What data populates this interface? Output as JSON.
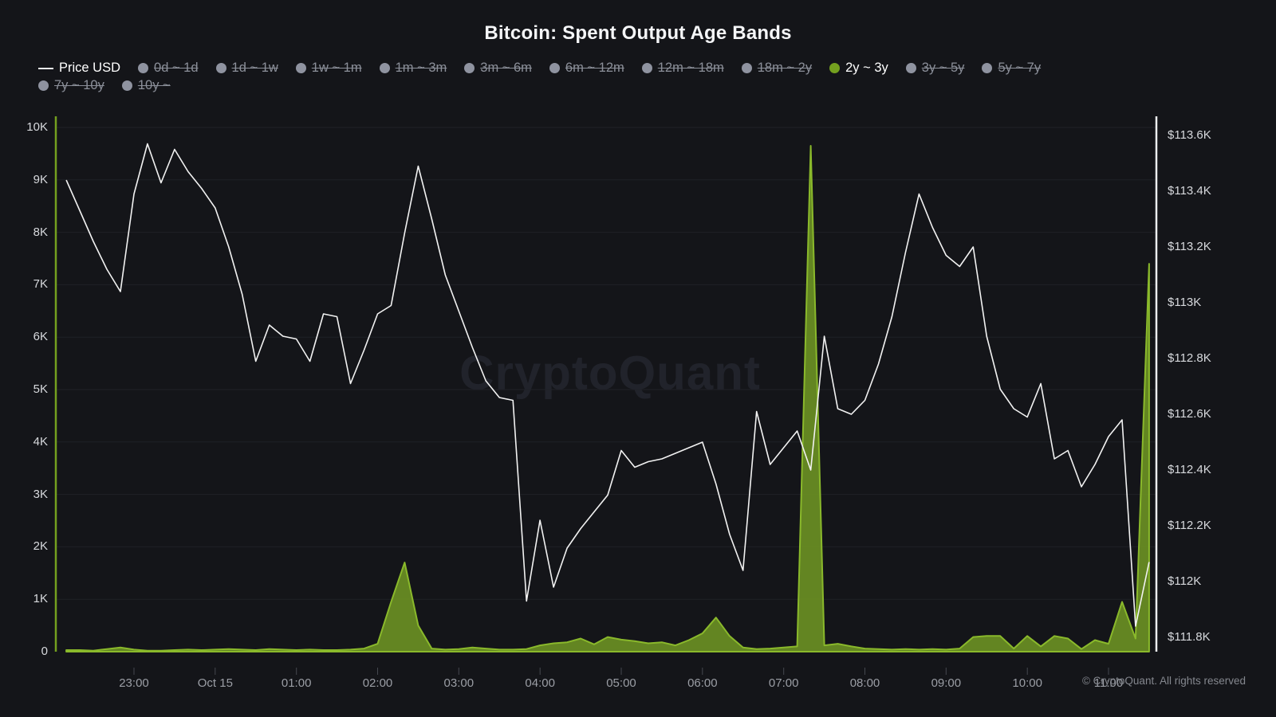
{
  "title": "Bitcoin: Spent Output Age Bands",
  "watermark": "CryptoQuant",
  "footer": "© CryptoQuant. All rights reserved",
  "colors": {
    "background": "#141519",
    "accent_green": "#74a01f",
    "area_fill": "#6a8f23",
    "area_stroke": "#8ab92b",
    "price_line": "#f2f2f2",
    "grid": "#1f2127",
    "tick_mark": "#45484f",
    "legend_inactive": "#8b8f99"
  },
  "legend": {
    "rows": [
      [
        {
          "label": "Price USD",
          "type": "price",
          "state": "on"
        },
        {
          "label": "0d ~ 1d",
          "type": "band",
          "state": "off"
        },
        {
          "label": "1d ~ 1w",
          "type": "band",
          "state": "off"
        },
        {
          "label": "1w ~ 1m",
          "type": "band",
          "state": "off"
        },
        {
          "label": "1m ~ 3m",
          "type": "band",
          "state": "off"
        },
        {
          "label": "3m ~ 6m",
          "type": "band",
          "state": "off"
        },
        {
          "label": "6m ~ 12m",
          "type": "band",
          "state": "off"
        },
        {
          "label": "12m ~ 18m",
          "type": "band",
          "state": "off"
        },
        {
          "label": "18m ~ 2y",
          "type": "band",
          "state": "off"
        },
        {
          "label": "2y ~ 3y",
          "type": "band",
          "state": "on"
        },
        {
          "label": "3y ~ 5y",
          "type": "band",
          "state": "off"
        },
        {
          "label": "5y ~ 7y",
          "type": "band",
          "state": "off"
        }
      ],
      [
        {
          "label": "7y ~ 10y",
          "type": "band",
          "state": "off"
        },
        {
          "label": "10y ~",
          "type": "band",
          "state": "off"
        }
      ]
    ]
  },
  "chart_data": {
    "type": "mixed",
    "grid": "horizontal",
    "legend_position": "top",
    "x_tick_labels": [
      "23:00",
      "Oct 15",
      "01:00",
      "02:00",
      "03:00",
      "04:00",
      "05:00",
      "06:00",
      "07:00",
      "08:00",
      "09:00",
      "10:00",
      "11:00"
    ],
    "left_axis": {
      "min": 0,
      "max": 10000,
      "ticks": [
        "0",
        "1K",
        "2K",
        "3K",
        "4K",
        "5K",
        "6K",
        "7K",
        "8K",
        "9K",
        "10K"
      ]
    },
    "right_axis": {
      "min": 111800,
      "max": 113600,
      "unit": "USD",
      "ticks": [
        "$111.8K",
        "$112K",
        "$112.2K",
        "$112.4K",
        "$112.6K",
        "$112.8K",
        "$113K",
        "$113.2K",
        "$113.4K",
        "$113.6K"
      ]
    },
    "x": [
      "22:10",
      "22:20",
      "22:30",
      "22:40",
      "22:50",
      "23:00",
      "23:10",
      "23:20",
      "23:30",
      "23:40",
      "23:50",
      "00:00",
      "00:10",
      "00:20",
      "00:30",
      "00:40",
      "00:50",
      "01:00",
      "01:10",
      "01:20",
      "01:30",
      "01:40",
      "01:50",
      "02:00",
      "02:10",
      "02:20",
      "02:30",
      "02:40",
      "02:50",
      "03:00",
      "03:10",
      "03:20",
      "03:30",
      "03:40",
      "03:50",
      "04:00",
      "04:10",
      "04:20",
      "04:30",
      "04:40",
      "04:50",
      "05:00",
      "05:10",
      "05:20",
      "05:30",
      "05:40",
      "05:50",
      "06:00",
      "06:10",
      "06:20",
      "06:30",
      "06:40",
      "06:50",
      "07:00",
      "07:10",
      "07:20",
      "07:30",
      "07:40",
      "07:50",
      "08:00",
      "08:10",
      "08:20",
      "08:30",
      "08:40",
      "08:50",
      "09:00",
      "09:10",
      "09:20",
      "09:30",
      "09:40",
      "09:50",
      "10:00",
      "10:10",
      "10:20",
      "10:30",
      "10:40",
      "10:50",
      "11:00",
      "11:10",
      "11:20",
      "11:30"
    ],
    "series": [
      {
        "name": "Price USD",
        "type": "line",
        "axis": "right",
        "color": "#f2f2f2",
        "values": [
          113440,
          113330,
          113220,
          113120,
          113040,
          113390,
          113570,
          113430,
          113550,
          113470,
          113410,
          113340,
          113200,
          113030,
          112790,
          112920,
          112880,
          112870,
          112790,
          112960,
          112950,
          112710,
          112830,
          112960,
          112990,
          113250,
          113490,
          113300,
          113100,
          112970,
          112840,
          112720,
          112660,
          112650,
          111930,
          112220,
          111980,
          112120,
          112190,
          112250,
          112310,
          112470,
          112410,
          112430,
          112440,
          112460,
          112480,
          112500,
          112350,
          112170,
          112040,
          112610,
          112420,
          112480,
          112540,
          112400,
          112880,
          112620,
          112600,
          112650,
          112780,
          112950,
          113180,
          113390,
          113270,
          113170,
          113130,
          113200,
          112880,
          112690,
          112620,
          112590,
          112710,
          112440,
          112470,
          112340,
          112420,
          112520,
          112580,
          111840,
          112070
        ]
      },
      {
        "name": "2y ~ 3y",
        "type": "area",
        "axis": "left",
        "color": "#8ab92b",
        "values": [
          30,
          30,
          20,
          50,
          80,
          40,
          20,
          20,
          30,
          40,
          30,
          40,
          50,
          40,
          30,
          50,
          40,
          30,
          40,
          30,
          30,
          40,
          60,
          150,
          950,
          1700,
          500,
          60,
          40,
          50,
          80,
          60,
          40,
          40,
          50,
          120,
          160,
          180,
          250,
          140,
          280,
          230,
          200,
          160,
          180,
          120,
          220,
          350,
          650,
          300,
          80,
          50,
          60,
          80,
          100,
          9650,
          120,
          150,
          100,
          60,
          50,
          40,
          50,
          40,
          50,
          40,
          60,
          280,
          300,
          300,
          60,
          300,
          100,
          300,
          250,
          50,
          220,
          150,
          950,
          250,
          7400
        ]
      }
    ]
  }
}
